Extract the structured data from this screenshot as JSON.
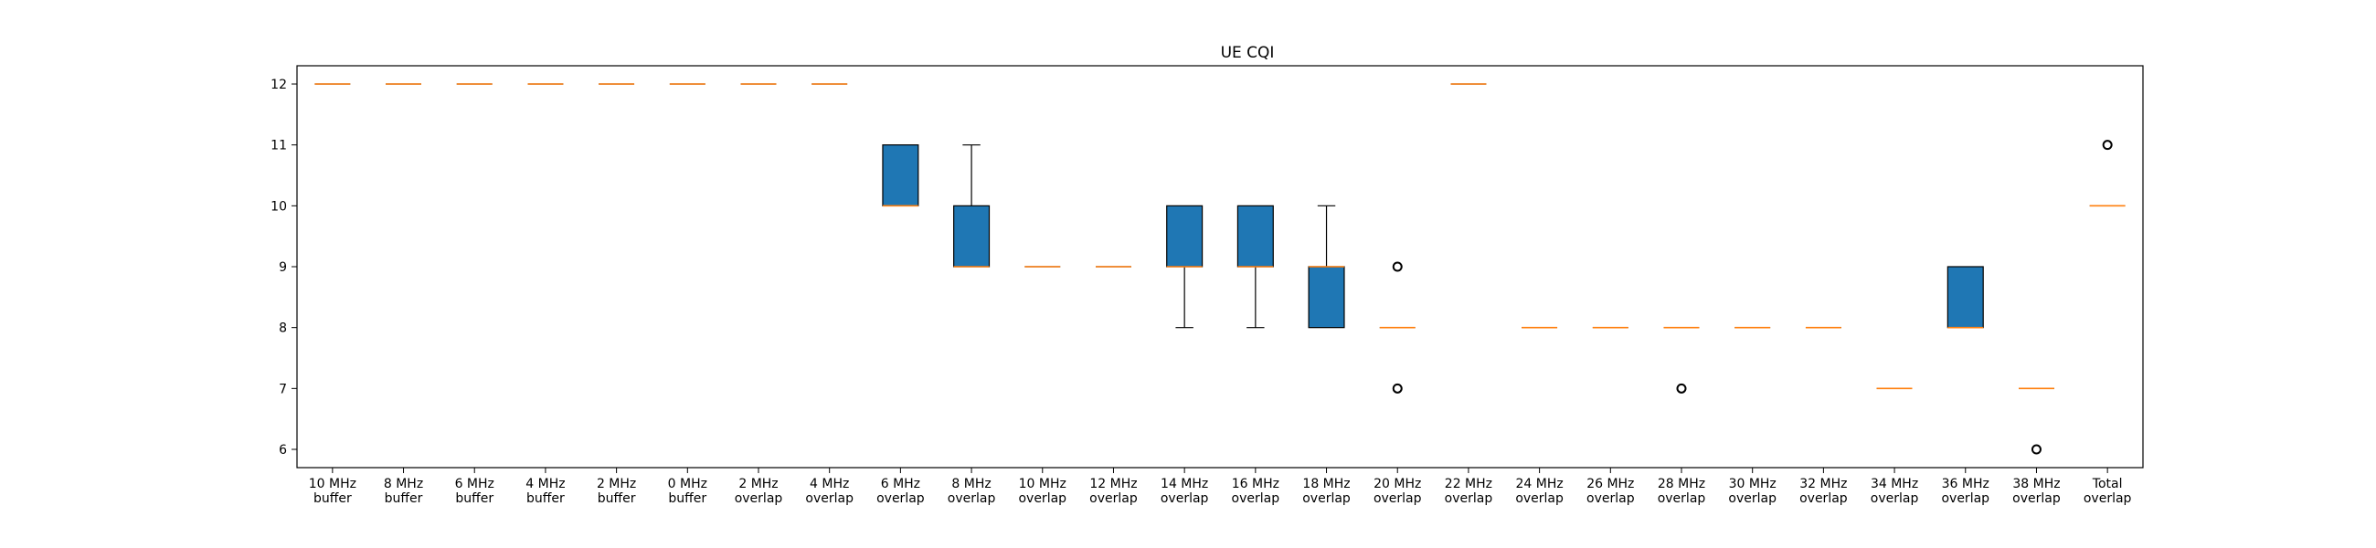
{
  "chart_data": {
    "type": "box",
    "title": "UE CQI",
    "xlabel": "",
    "ylabel": "",
    "ylim": [
      5.7,
      12.3
    ],
    "yticks": [
      6,
      7,
      8,
      9,
      10,
      11,
      12
    ],
    "grid": false,
    "colors": {
      "box_fill": "#1f77b4",
      "median": "#ff7f0e",
      "edge": "#000000"
    },
    "categories": [
      [
        "10 MHz",
        "buffer"
      ],
      [
        "8 MHz",
        "buffer"
      ],
      [
        "6 MHz",
        "buffer"
      ],
      [
        "4 MHz",
        "buffer"
      ],
      [
        "2 MHz",
        "buffer"
      ],
      [
        "0 MHz",
        "buffer"
      ],
      [
        "2 MHz",
        "overlap"
      ],
      [
        "4 MHz",
        "overlap"
      ],
      [
        "6 MHz",
        "overlap"
      ],
      [
        "8 MHz",
        "overlap"
      ],
      [
        "10 MHz",
        "overlap"
      ],
      [
        "12 MHz",
        "overlap"
      ],
      [
        "14 MHz",
        "overlap"
      ],
      [
        "16 MHz",
        "overlap"
      ],
      [
        "18 MHz",
        "overlap"
      ],
      [
        "20 MHz",
        "overlap"
      ],
      [
        "22 MHz",
        "overlap"
      ],
      [
        "24 MHz",
        "overlap"
      ],
      [
        "26 MHz",
        "overlap"
      ],
      [
        "28 MHz",
        "overlap"
      ],
      [
        "30 MHz",
        "overlap"
      ],
      [
        "32 MHz",
        "overlap"
      ],
      [
        "34 MHz",
        "overlap"
      ],
      [
        "36 MHz",
        "overlap"
      ],
      [
        "38 MHz",
        "overlap"
      ],
      [
        "Total",
        "overlap"
      ]
    ],
    "boxes": [
      {
        "whislo": 12,
        "q1": 12,
        "med": 12,
        "q3": 12,
        "whishi": 12,
        "fliers": []
      },
      {
        "whislo": 12,
        "q1": 12,
        "med": 12,
        "q3": 12,
        "whishi": 12,
        "fliers": []
      },
      {
        "whislo": 12,
        "q1": 12,
        "med": 12,
        "q3": 12,
        "whishi": 12,
        "fliers": []
      },
      {
        "whislo": 12,
        "q1": 12,
        "med": 12,
        "q3": 12,
        "whishi": 12,
        "fliers": []
      },
      {
        "whislo": 12,
        "q1": 12,
        "med": 12,
        "q3": 12,
        "whishi": 12,
        "fliers": []
      },
      {
        "whislo": 12,
        "q1": 12,
        "med": 12,
        "q3": 12,
        "whishi": 12,
        "fliers": []
      },
      {
        "whislo": 12,
        "q1": 12,
        "med": 12,
        "q3": 12,
        "whishi": 12,
        "fliers": []
      },
      {
        "whislo": 12,
        "q1": 12,
        "med": 12,
        "q3": 12,
        "whishi": 12,
        "fliers": []
      },
      {
        "whislo": 10,
        "q1": 10,
        "med": 10,
        "q3": 11,
        "whishi": 11,
        "fliers": []
      },
      {
        "whislo": 9,
        "q1": 9,
        "med": 9,
        "q3": 10,
        "whishi": 11,
        "fliers": []
      },
      {
        "whislo": 9,
        "q1": 9,
        "med": 9,
        "q3": 9,
        "whishi": 9,
        "fliers": []
      },
      {
        "whislo": 9,
        "q1": 9,
        "med": 9,
        "q3": 9,
        "whishi": 9,
        "fliers": []
      },
      {
        "whislo": 8,
        "q1": 9,
        "med": 9,
        "q3": 10,
        "whishi": 10,
        "fliers": []
      },
      {
        "whislo": 8,
        "q1": 9,
        "med": 9,
        "q3": 10,
        "whishi": 10,
        "fliers": []
      },
      {
        "whislo": 8,
        "q1": 8,
        "med": 9,
        "q3": 9,
        "whishi": 10,
        "fliers": []
      },
      {
        "whislo": 8,
        "q1": 8,
        "med": 8,
        "q3": 8,
        "whishi": 8,
        "fliers": [
          9,
          7
        ]
      },
      {
        "whislo": 12,
        "q1": 12,
        "med": 12,
        "q3": 12,
        "whishi": 12,
        "fliers": []
      },
      {
        "whislo": 8,
        "q1": 8,
        "med": 8,
        "q3": 8,
        "whishi": 8,
        "fliers": []
      },
      {
        "whislo": 8,
        "q1": 8,
        "med": 8,
        "q3": 8,
        "whishi": 8,
        "fliers": []
      },
      {
        "whislo": 8,
        "q1": 8,
        "med": 8,
        "q3": 8,
        "whishi": 8,
        "fliers": [
          7
        ]
      },
      {
        "whislo": 8,
        "q1": 8,
        "med": 8,
        "q3": 8,
        "whishi": 8,
        "fliers": []
      },
      {
        "whislo": 8,
        "q1": 8,
        "med": 8,
        "q3": 8,
        "whishi": 8,
        "fliers": []
      },
      {
        "whislo": 7,
        "q1": 7,
        "med": 7,
        "q3": 7,
        "whishi": 7,
        "fliers": []
      },
      {
        "whislo": 8,
        "q1": 8,
        "med": 8,
        "q3": 9,
        "whishi": 9,
        "fliers": []
      },
      {
        "whislo": 7,
        "q1": 7,
        "med": 7,
        "q3": 7,
        "whishi": 7,
        "fliers": [
          6
        ]
      },
      {
        "whislo": 10,
        "q1": 10,
        "med": 10,
        "q3": 10,
        "whishi": 10,
        "fliers": [
          11
        ]
      }
    ]
  }
}
